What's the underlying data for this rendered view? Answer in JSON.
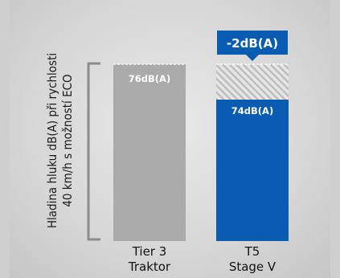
{
  "chart_data": {
    "type": "bar",
    "ylabel": [
      "Hladina hluku dB(A) při rychlosti",
      "40 km/h s možností ECO"
    ],
    "categories": [
      [
        "Tier 3",
        "Traktor"
      ],
      [
        "T5",
        "Stage V"
      ]
    ],
    "values": [
      76,
      74
    ],
    "value_labels": [
      "76dB(A)",
      "74dB(A)"
    ],
    "reduction_label": "-2dB(A)",
    "colors": {
      "bar_1": "#aaaaaa",
      "bar_2": "#0a5cb2",
      "bracket": "#8c8c8c",
      "hatch": "#c2c2c2",
      "annotation_bg": "#0a5cb2"
    }
  }
}
